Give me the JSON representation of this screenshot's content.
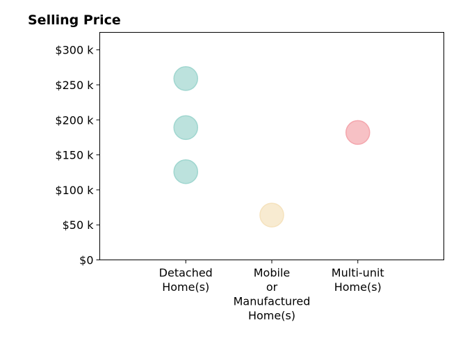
{
  "chart_data": {
    "type": "scatter",
    "title": "Selling Price",
    "xlabel": "",
    "ylabel": "",
    "categories": [
      [
        "Detached",
        "Home(s)"
      ],
      [
        "Mobile",
        "or",
        "Manufactured",
        "Home(s)"
      ],
      [
        "Multi-unit",
        "Home(s)"
      ]
    ],
    "y_ticks": [
      {
        "value": 0,
        "label": "$0"
      },
      {
        "value": 50000,
        "label": "$50 k"
      },
      {
        "value": 100000,
        "label": "$100 k"
      },
      {
        "value": 150000,
        "label": "$150 k"
      },
      {
        "value": 200000,
        "label": "$200 k"
      },
      {
        "value": 250000,
        "label": "$250 k"
      },
      {
        "value": 300000,
        "label": "$300 k"
      }
    ],
    "ylim": [
      0,
      325000
    ],
    "xlim": [
      0,
      4
    ],
    "grid": false,
    "legend": "none",
    "points": [
      {
        "category_index": 0,
        "y": 259000,
        "color": "#9fd6cf"
      },
      {
        "category_index": 0,
        "y": 189000,
        "color": "#9fd6cf"
      },
      {
        "category_index": 0,
        "y": 126000,
        "color": "#9fd6cf"
      },
      {
        "category_index": 1,
        "y": 64000,
        "color": "#f5e2bd"
      },
      {
        "category_index": 2,
        "y": 182000,
        "color": "#f4a6ad"
      }
    ],
    "point_opacity": 0.7
  }
}
